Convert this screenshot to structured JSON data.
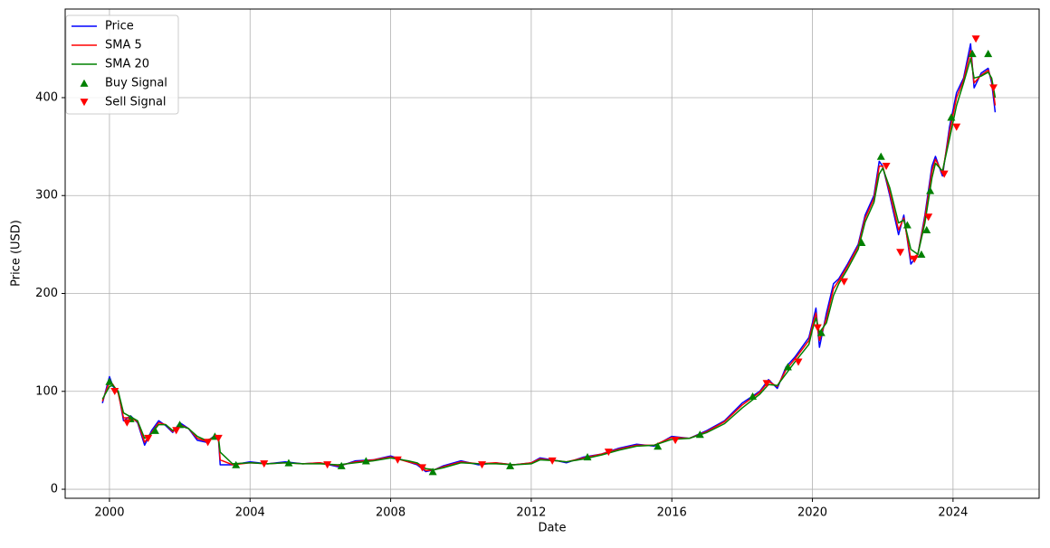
{
  "chart_data": {
    "type": "line",
    "xlabel": "Date",
    "ylabel": "Price (USD)",
    "xlim": [
      1998.74,
      2026.45
    ],
    "xticks": [
      2000,
      2004,
      2008,
      2012,
      2016,
      2020,
      2024
    ],
    "ylim": [
      -9.2,
      490.5
    ],
    "yticks": [
      0,
      100,
      200,
      300,
      400
    ],
    "grid": true,
    "legend": "upper left",
    "x": [
      1999.8,
      2000.0,
      2000.1,
      2000.25,
      2000.4,
      2000.6,
      2000.8,
      2001.0,
      2001.2,
      2001.4,
      2001.6,
      2001.8,
      2002.0,
      2002.25,
      2002.5,
      2002.75,
      2003.0,
      2003.1,
      2003.15,
      2003.5,
      2004.0,
      2004.5,
      2005.0,
      2005.5,
      2006.0,
      2006.5,
      2007.0,
      2007.5,
      2008.0,
      2008.5,
      2008.75,
      2009.0,
      2009.25,
      2009.5,
      2010.0,
      2010.5,
      2011.0,
      2011.5,
      2012.0,
      2012.25,
      2012.75,
      2013.0,
      2013.5,
      2014.0,
      2014.5,
      2015.0,
      2015.5,
      2016.0,
      2016.5,
      2017.0,
      2017.5,
      2018.0,
      2018.5,
      2018.75,
      2019.0,
      2019.25,
      2019.5,
      2019.9,
      2020.0,
      2020.1,
      2020.2,
      2020.4,
      2020.6,
      2020.75,
      2021.0,
      2021.3,
      2021.5,
      2021.75,
      2021.9,
      2022.0,
      2022.2,
      2022.45,
      2022.6,
      2022.8,
      2023.0,
      2023.2,
      2023.4,
      2023.5,
      2023.7,
      2023.9,
      2024.1,
      2024.3,
      2024.5,
      2024.6,
      2024.8,
      2025.0,
      2025.1,
      2025.2
    ],
    "series": [
      {
        "name": "Price",
        "type": "line",
        "color": "#0000ff",
        "values": [
          88,
          115,
          105,
          100,
          70,
          75,
          68,
          45,
          60,
          70,
          65,
          58,
          68,
          62,
          50,
          48,
          55,
          52,
          25,
          25,
          28,
          26,
          28,
          26,
          27,
          23,
          29,
          30,
          34,
          28,
          25,
          18,
          20,
          24,
          29,
          25,
          27,
          25,
          27,
          32,
          29,
          27,
          33,
          36,
          42,
          46,
          44,
          54,
          52,
          60,
          70,
          88,
          100,
          112,
          103,
          125,
          135,
          155,
          170,
          185,
          145,
          180,
          210,
          215,
          230,
          250,
          280,
          300,
          335,
          330,
          300,
          260,
          280,
          230,
          240,
          280,
          330,
          340,
          320,
          370,
          405,
          420,
          455,
          410,
          425,
          430,
          415,
          385
        ]
      },
      {
        "name": "SMA 5",
        "type": "line",
        "color": "#ff0000",
        "values": [
          90,
          110,
          107,
          98,
          73,
          73,
          69,
          48,
          58,
          68,
          66,
          59,
          66,
          62,
          52,
          49,
          54,
          53,
          30,
          25,
          27,
          26,
          27,
          26,
          27,
          24,
          28,
          30,
          33,
          28,
          26,
          19,
          20,
          23,
          28,
          26,
          27,
          25,
          27,
          31,
          29,
          28,
          32,
          36,
          41,
          45,
          45,
          53,
          52,
          59,
          69,
          86,
          99,
          110,
          105,
          122,
          133,
          152,
          167,
          180,
          152,
          175,
          205,
          213,
          228,
          248,
          277,
          297,
          330,
          330,
          303,
          265,
          277,
          235,
          240,
          277,
          325,
          337,
          323,
          365,
          400,
          418,
          448,
          415,
          423,
          428,
          418,
          392
        ]
      },
      {
        "name": "SMA 20",
        "type": "line",
        "color": "#008000",
        "values": [
          92,
          105,
          106,
          100,
          78,
          74,
          70,
          52,
          57,
          66,
          66,
          60,
          65,
          62,
          54,
          50,
          53,
          53,
          38,
          26,
          27,
          26,
          27,
          26,
          26,
          25,
          27,
          29,
          32,
          29,
          27,
          21,
          20,
          22,
          27,
          26,
          26,
          25,
          26,
          30,
          29,
          28,
          31,
          35,
          40,
          44,
          45,
          51,
          52,
          58,
          67,
          83,
          97,
          107,
          106,
          118,
          130,
          148,
          163,
          175,
          160,
          170,
          198,
          210,
          225,
          245,
          273,
          293,
          322,
          328,
          308,
          272,
          275,
          245,
          240,
          272,
          318,
          333,
          325,
          358,
          392,
          415,
          440,
          420,
          422,
          426,
          420,
          400
        ]
      },
      {
        "name": "Buy Signal",
        "type": "scatter",
        "marker": "up",
        "color": "#008000",
        "x": [
          2000.0,
          2000.6,
          2001.3,
          2002.0,
          2003.0,
          2003.6,
          2005.1,
          2006.6,
          2007.3,
          2009.2,
          2011.4,
          2013.6,
          2015.6,
          2016.8,
          2018.3,
          2019.3,
          2020.25,
          2021.4,
          2021.95,
          2022.7,
          2023.1,
          2023.25,
          2023.35,
          2023.95,
          2024.55,
          2025.0
        ],
        "values": [
          110,
          72,
          60,
          66,
          54,
          25,
          27,
          24,
          29,
          18,
          24,
          33,
          44,
          56,
          95,
          125,
          160,
          252,
          340,
          270,
          240,
          265,
          305,
          380,
          445,
          445
        ]
      },
      {
        "name": "Sell Signal",
        "type": "scatter",
        "marker": "down",
        "color": "#ff0000",
        "x": [
          2000.15,
          2000.5,
          2001.1,
          2001.9,
          2002.8,
          2003.1,
          2004.4,
          2006.2,
          2008.2,
          2008.9,
          2010.6,
          2012.6,
          2014.2,
          2016.1,
          2018.7,
          2019.6,
          2020.15,
          2020.9,
          2022.1,
          2022.5,
          2022.9,
          2023.3,
          2023.75,
          2024.1,
          2024.65,
          2025.15
        ],
        "values": [
          100,
          68,
          52,
          60,
          48,
          52,
          26,
          25,
          30,
          22,
          25,
          29,
          38,
          50,
          108,
          130,
          165,
          212,
          330,
          242,
          235,
          278,
          322,
          370,
          460,
          410
        ]
      }
    ]
  }
}
